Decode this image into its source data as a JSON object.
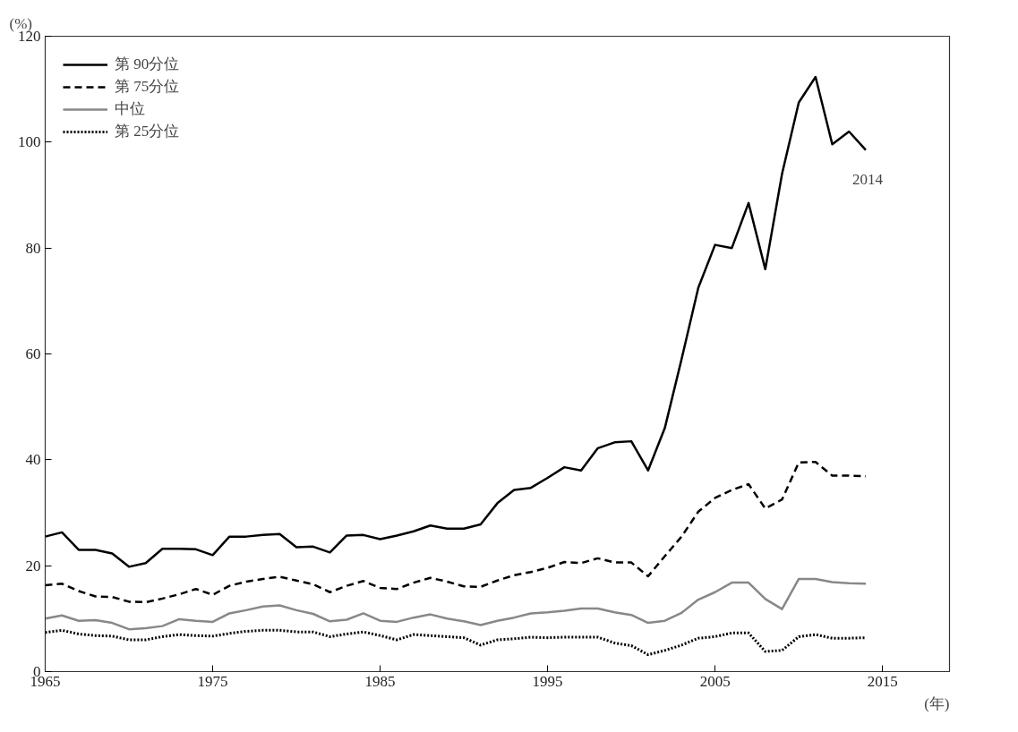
{
  "chart_data": {
    "type": "line",
    "xlabel": "(年)",
    "ylabel": "(%)",
    "x": [
      1965,
      1966,
      1967,
      1968,
      1969,
      1970,
      1971,
      1972,
      1973,
      1974,
      1975,
      1976,
      1977,
      1978,
      1979,
      1980,
      1981,
      1982,
      1983,
      1984,
      1985,
      1986,
      1987,
      1988,
      1989,
      1990,
      1991,
      1992,
      1993,
      1994,
      1995,
      1996,
      1997,
      1998,
      1999,
      2000,
      2001,
      2002,
      2003,
      2004,
      2005,
      2006,
      2007,
      2008,
      2009,
      2010,
      2011,
      2012,
      2013,
      2014
    ],
    "series": [
      {
        "name": "第 90分位",
        "color": "#000000",
        "line_style": "solid",
        "values": [
          25.5,
          26.3,
          23,
          23,
          22.3,
          19.8,
          20.5,
          23.2,
          23.2,
          23.1,
          22,
          25.5,
          25.5,
          25.8,
          26,
          23.5,
          23.6,
          22.5,
          25.7,
          25.8,
          25,
          25.7,
          26.5,
          27.6,
          27,
          27,
          27.8,
          31.8,
          34.3,
          34.7,
          36.6,
          38.6,
          38,
          42.2,
          43.3,
          43.5,
          38,
          46,
          59,
          72.5,
          80.6,
          80,
          88.5,
          76,
          94,
          107.5,
          112.3,
          99.6,
          102,
          98.5
        ]
      },
      {
        "name": "第 75分位",
        "color": "#000000",
        "line_style": "dashed",
        "values": [
          16.3,
          16.6,
          15.2,
          14.2,
          14.1,
          13.2,
          13.1,
          13.8,
          14.6,
          15.6,
          14.5,
          16.2,
          17,
          17.5,
          17.9,
          17.2,
          16.5,
          15,
          16.2,
          17.1,
          15.8,
          15.6,
          16.8,
          17.7,
          17,
          16.1,
          16,
          17.2,
          18.2,
          18.8,
          19.6,
          20.7,
          20.5,
          21.4,
          20.6,
          20.6,
          18,
          21.8,
          25.5,
          30.2,
          32.8,
          34.3,
          35.4,
          30.8,
          32.5,
          39.5,
          39.6,
          37,
          37,
          36.9
        ]
      },
      {
        "name": "中位",
        "color": "#888888",
        "line_style": "solid",
        "values": [
          10,
          10.6,
          9.6,
          9.7,
          9.2,
          8,
          8.2,
          8.6,
          9.9,
          9.6,
          9.4,
          11,
          11.6,
          12.3,
          12.5,
          11.6,
          10.9,
          9.5,
          9.8,
          11,
          9.6,
          9.4,
          10.2,
          10.8,
          10,
          9.5,
          8.8,
          9.6,
          10.2,
          11,
          11.2,
          11.5,
          11.9,
          11.9,
          11.2,
          10.7,
          9.2,
          9.6,
          11.1,
          13.6,
          15,
          16.8,
          16.8,
          13.7,
          11.8,
          17.5,
          17.5,
          16.9,
          16.7,
          16.6
        ]
      },
      {
        "name": "第 25分位",
        "color": "#000000",
        "line_style": "dotted",
        "values": [
          7.4,
          7.8,
          7.1,
          6.8,
          6.7,
          6,
          6,
          6.6,
          7,
          6.8,
          6.7,
          7.2,
          7.6,
          7.8,
          7.8,
          7.5,
          7.5,
          6.6,
          7.1,
          7.5,
          6.8,
          6,
          7,
          6.8,
          6.6,
          6.4,
          5,
          6,
          6.2,
          6.5,
          6.4,
          6.5,
          6.5,
          6.5,
          5.4,
          4.9,
          3.2,
          4,
          5,
          6.3,
          6.6,
          7.3,
          7.3,
          3.8,
          4,
          6.6,
          7,
          6.3,
          6.3,
          6.4
        ]
      }
    ],
    "annotations": [
      {
        "text": "2014",
        "x": 2014,
        "y": 98.5
      }
    ],
    "xlim": [
      1965,
      2019
    ],
    "ylim": [
      0,
      120
    ],
    "xticks": [
      1965,
      1975,
      1985,
      1995,
      2005,
      2015
    ],
    "yticks": [
      0,
      20,
      40,
      60,
      80,
      100,
      120
    ],
    "grid": false,
    "legend": "top left"
  }
}
